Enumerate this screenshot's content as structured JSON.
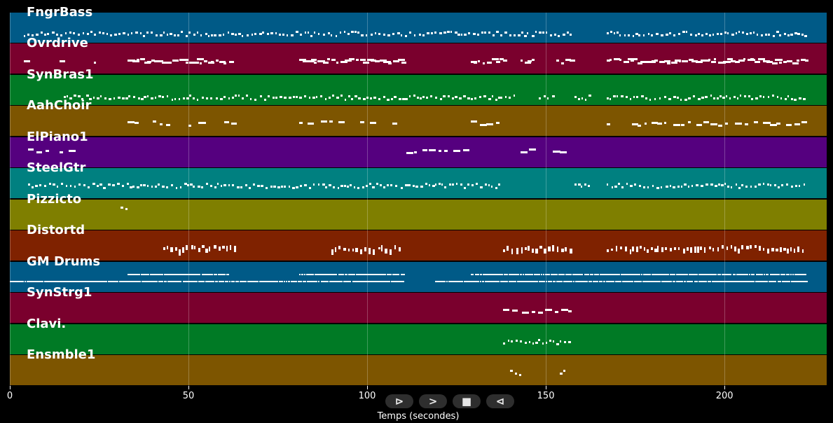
{
  "chart_data": {
    "type": "piano-roll",
    "xlabel": "Temps (secondes)",
    "xlim": [
      0,
      228.6
    ],
    "xticks": [
      0,
      50,
      100,
      150,
      200
    ],
    "grid": true,
    "tracks": [
      {
        "name": "FngrBass",
        "color": "#005a87",
        "regions": [
          [
            4,
            157
          ],
          [
            167,
            223
          ]
        ],
        "rows": 1
      },
      {
        "name": "Ovrdrive",
        "color": "#7a002d",
        "regions": [
          [
            4,
            4.5
          ],
          [
            14,
            14.5
          ],
          [
            23.5,
            24.5
          ],
          [
            33,
            62
          ],
          [
            81,
            110
          ],
          [
            129,
            138
          ],
          [
            143,
            147
          ],
          [
            153,
            157
          ],
          [
            167,
            223
          ]
        ],
        "rows": 1
      },
      {
        "name": "SynBras1",
        "color": "#007a25",
        "regions": [
          [
            15,
            142
          ],
          [
            148,
            152
          ],
          [
            158,
            163
          ],
          [
            167,
            223
          ]
        ],
        "rows": 1
      },
      {
        "name": "AahChoir",
        "color": "#7d5500",
        "regions": [
          [
            33,
            35
          ],
          [
            40,
            44
          ],
          [
            50,
            54
          ],
          [
            60,
            62
          ],
          [
            81,
            84
          ],
          [
            87,
            93
          ],
          [
            98,
            102
          ],
          [
            107,
            109
          ],
          [
            129,
            136
          ],
          [
            167,
            168
          ],
          [
            174,
            223
          ]
        ],
        "rows": 1
      },
      {
        "name": "ElPiano1",
        "color": "#55007f",
        "regions": [
          [
            5,
            11
          ],
          [
            14,
            18
          ],
          [
            111,
            128
          ],
          [
            143,
            146
          ],
          [
            152,
            155
          ]
        ],
        "rows": 1
      },
      {
        "name": "SteelGtr",
        "color": "#008080",
        "regions": [
          [
            5,
            137
          ],
          [
            158,
            163
          ],
          [
            167,
            223
          ]
        ],
        "rows": 1
      },
      {
        "name": "Pizzicto",
        "color": "#7f7f00",
        "regions": [
          [
            31,
            33
          ]
        ],
        "rows": 1
      },
      {
        "name": "Distortd",
        "color": "#7f2200",
        "regions": [
          [
            43,
            63
          ],
          [
            90,
            109
          ],
          [
            138,
            157
          ],
          [
            167,
            223
          ]
        ],
        "rows": 1
      },
      {
        "name": "GM Drums",
        "color": "#005a87",
        "regions": [
          [
            0,
            110
          ],
          [
            119,
            223
          ],
          [
            33,
            61
          ],
          [
            81,
            110
          ],
          [
            129,
            223
          ]
        ],
        "rows": 2
      },
      {
        "name": "SynStrg1",
        "color": "#7a002d",
        "regions": [
          [
            138,
            157
          ]
        ],
        "rows": 1
      },
      {
        "name": "Clavi.",
        "color": "#007a25",
        "regions": [
          [
            138,
            157
          ]
        ],
        "rows": 1
      },
      {
        "name": "Ensmble1",
        "color": "#7d5500",
        "regions": [
          [
            140,
            143
          ],
          [
            154,
            155
          ]
        ],
        "rows": 1
      }
    ]
  },
  "controls": {
    "play": "⊳",
    "forward": ">",
    "stop": "■",
    "back": "⊲"
  }
}
